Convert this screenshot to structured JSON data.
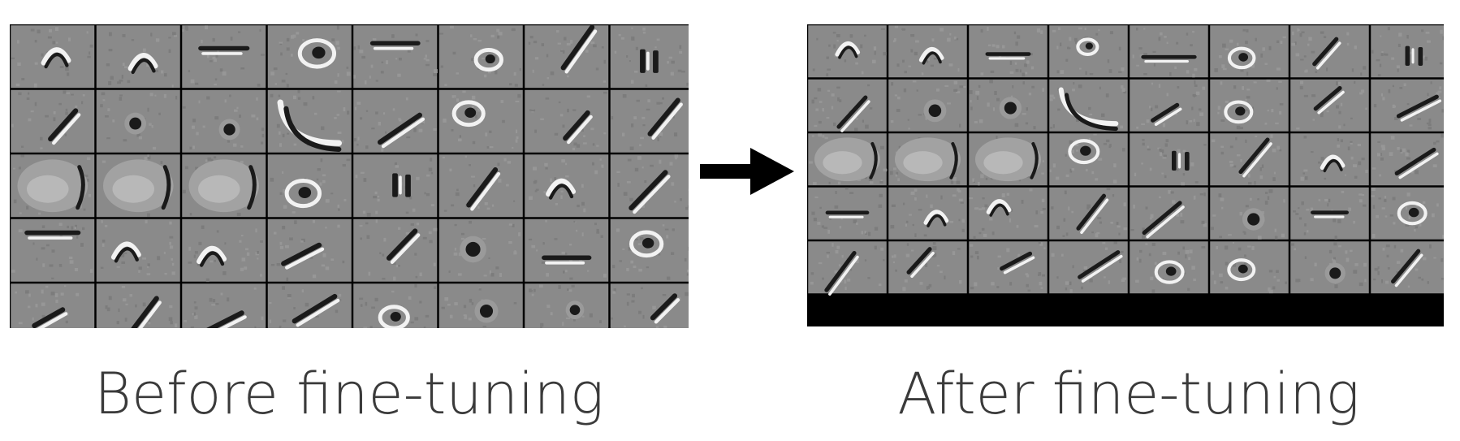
{
  "panels": [
    {
      "id": "before",
      "caption": "Before fine-tuning",
      "cols": 8,
      "visible_rows": 5,
      "filters": [
        {
          "kind": "curve"
        },
        {
          "kind": "curve"
        },
        {
          "kind": "bar"
        },
        {
          "kind": "ring"
        },
        {
          "kind": "bar"
        },
        {
          "kind": "ring"
        },
        {
          "kind": "stroke"
        },
        {
          "kind": "pair"
        },
        {
          "kind": "stroke"
        },
        {
          "kind": "spot"
        },
        {
          "kind": "spot"
        },
        {
          "kind": "arc"
        },
        {
          "kind": "stroke"
        },
        {
          "kind": "ring"
        },
        {
          "kind": "stroke"
        },
        {
          "kind": "stroke"
        },
        {
          "kind": "blob"
        },
        {
          "kind": "blob"
        },
        {
          "kind": "blob"
        },
        {
          "kind": "ring"
        },
        {
          "kind": "pair"
        },
        {
          "kind": "stroke"
        },
        {
          "kind": "curve"
        },
        {
          "kind": "stroke"
        },
        {
          "kind": "bar"
        },
        {
          "kind": "curve"
        },
        {
          "kind": "curve"
        },
        {
          "kind": "stroke"
        },
        {
          "kind": "stroke"
        },
        {
          "kind": "spot"
        },
        {
          "kind": "bar"
        },
        {
          "kind": "ring"
        },
        {
          "kind": "stroke"
        },
        {
          "kind": "stroke"
        },
        {
          "kind": "stroke"
        },
        {
          "kind": "stroke"
        },
        {
          "kind": "ring"
        },
        {
          "kind": "spot"
        },
        {
          "kind": "spot"
        },
        {
          "kind": "stroke"
        }
      ]
    },
    {
      "id": "after",
      "caption": "After fine-tuning",
      "cols": 8,
      "visible_rows": 5,
      "filters": [
        {
          "kind": "curve"
        },
        {
          "kind": "curve"
        },
        {
          "kind": "bar"
        },
        {
          "kind": "ring"
        },
        {
          "kind": "bar"
        },
        {
          "kind": "ring"
        },
        {
          "kind": "stroke"
        },
        {
          "kind": "pair"
        },
        {
          "kind": "stroke"
        },
        {
          "kind": "spot"
        },
        {
          "kind": "spot"
        },
        {
          "kind": "arc"
        },
        {
          "kind": "stroke"
        },
        {
          "kind": "ring"
        },
        {
          "kind": "stroke"
        },
        {
          "kind": "stroke"
        },
        {
          "kind": "blob"
        },
        {
          "kind": "blob"
        },
        {
          "kind": "blob"
        },
        {
          "kind": "ring"
        },
        {
          "kind": "pair"
        },
        {
          "kind": "stroke"
        },
        {
          "kind": "curve"
        },
        {
          "kind": "stroke"
        },
        {
          "kind": "bar"
        },
        {
          "kind": "curve"
        },
        {
          "kind": "curve"
        },
        {
          "kind": "stroke"
        },
        {
          "kind": "stroke"
        },
        {
          "kind": "spot"
        },
        {
          "kind": "bar"
        },
        {
          "kind": "ring"
        },
        {
          "kind": "stroke"
        },
        {
          "kind": "stroke"
        },
        {
          "kind": "stroke"
        },
        {
          "kind": "stroke"
        },
        {
          "kind": "ring"
        },
        {
          "kind": "ring"
        },
        {
          "kind": "spot"
        },
        {
          "kind": "stroke"
        }
      ]
    }
  ],
  "arrow": {
    "icon": "right-arrow-icon",
    "color": "#000000"
  },
  "colors": {
    "tile_gray": "#8a8a8a",
    "dark_stroke": "#1a1a1a",
    "light_stroke": "#f2f2f2",
    "grid_line": "#000000",
    "caption_text": "#3a3a3a"
  }
}
